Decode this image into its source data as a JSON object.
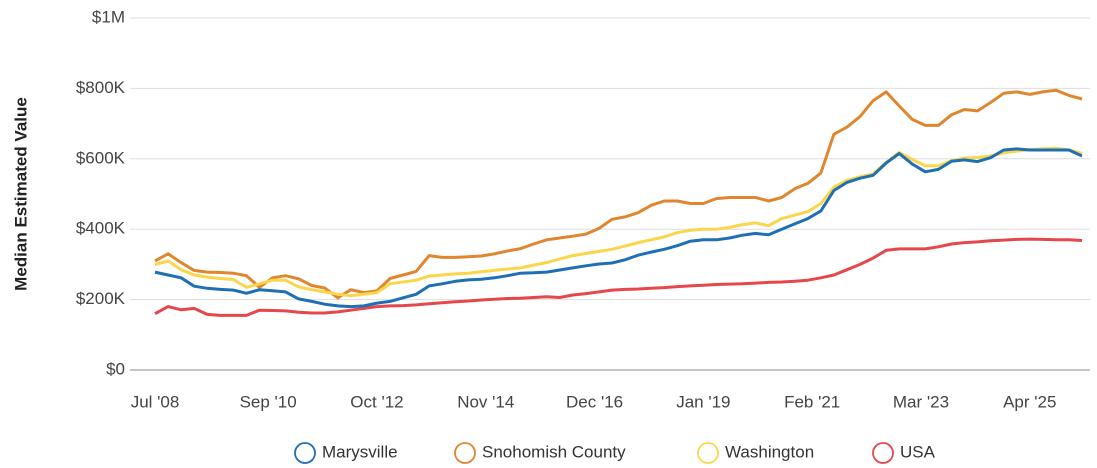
{
  "chart_data": {
    "type": "line",
    "y_label": "Median Estimated Value",
    "x": [
      "Jul '08",
      "Oct '08",
      "Jan '09",
      "Apr '09",
      "Jul '09",
      "Oct '09",
      "Jan '10",
      "Apr '10",
      "Jul '10",
      "Oct '10",
      "Jan '11",
      "Apr '11",
      "Jul '11",
      "Oct '11",
      "Jan '12",
      "Apr '12",
      "Jul '12",
      "Oct '12",
      "Jan '13",
      "Apr '13",
      "Jul '13",
      "Oct '13",
      "Jan '14",
      "Apr '14",
      "Jul '14",
      "Oct '14",
      "Jan '15",
      "Apr '15",
      "Jul '15",
      "Oct '15",
      "Jan '16",
      "Apr '16",
      "Jul '16",
      "Oct '16",
      "Jan '17",
      "Apr '17",
      "Jul '17",
      "Oct '17",
      "Jan '18",
      "Apr '18",
      "Jul '18",
      "Oct '18",
      "Jan '19",
      "Apr '19",
      "Jul '19",
      "Oct '19",
      "Jan '20",
      "Apr '20",
      "Jul '20",
      "Oct '20",
      "Jan '21",
      "Apr '21",
      "Jul '21",
      "Oct '21",
      "Jan '22",
      "Apr '22",
      "Jul '22",
      "Oct '22",
      "Jan '23",
      "Apr '23",
      "Jul '23",
      "Oct '23",
      "Jan '24",
      "Apr '24",
      "Jul '24",
      "Oct '24",
      "Jan '25",
      "Apr '25",
      "Jul '25",
      "Oct '25",
      "Jan '26",
      "Apr '26"
    ],
    "xlim": [
      "Jul '08",
      "Apr '26"
    ],
    "xticks": [
      "Jul '08",
      "Sep '10",
      "Oct '12",
      "Nov '14",
      "Dec '16",
      "Jan '19",
      "Feb '21",
      "Mar '23",
      "Apr '25"
    ],
    "ylim": [
      0,
      1000000
    ],
    "yticks": [
      {
        "value": 0,
        "label": "$0"
      },
      {
        "value": 200000,
        "label": "$200K"
      },
      {
        "value": 400000,
        "label": "$400K"
      },
      {
        "value": 600000,
        "label": "$600K"
      },
      {
        "value": 800000,
        "label": "$800K"
      },
      {
        "value": 1000000,
        "label": "$1M"
      }
    ],
    "grid": true,
    "legend": "bottom",
    "series": [
      {
        "name": "Marysville",
        "color": "#1f6fb4",
        "values": [
          278000,
          270000,
          262000,
          238000,
          232000,
          229000,
          227000,
          218000,
          228000,
          225000,
          222000,
          202000,
          195000,
          187000,
          182000,
          180000,
          182000,
          190000,
          195000,
          205000,
          215000,
          239000,
          245000,
          252000,
          256000,
          258000,
          262000,
          268000,
          275000,
          276000,
          278000,
          284000,
          290000,
          296000,
          301000,
          304000,
          313000,
          326000,
          335000,
          343000,
          353000,
          366000,
          370000,
          370000,
          375000,
          383000,
          388000,
          384000,
          400000,
          415000,
          430000,
          452000,
          510000,
          533000,
          545000,
          553000,
          588000,
          615000,
          585000,
          563000,
          570000,
          593000,
          597000,
          592000,
          603000,
          625000,
          628000,
          625000,
          625000,
          625000,
          625000,
          608000
        ]
      },
      {
        "name": "Snohomish County",
        "color": "#e0862e",
        "values": [
          310000,
          330000,
          305000,
          283000,
          278000,
          277000,
          275000,
          268000,
          235000,
          262000,
          268000,
          259000,
          240000,
          233000,
          205000,
          228000,
          220000,
          225000,
          260000,
          270000,
          280000,
          325000,
          320000,
          320000,
          322000,
          324000,
          330000,
          338000,
          345000,
          358000,
          370000,
          375000,
          380000,
          386000,
          402000,
          428000,
          435000,
          447000,
          468000,
          480000,
          480000,
          473000,
          473000,
          487000,
          490000,
          490000,
          490000,
          480000,
          490000,
          515000,
          530000,
          560000,
          670000,
          690000,
          720000,
          765000,
          790000,
          750000,
          712000,
          695000,
          695000,
          725000,
          740000,
          736000,
          760000,
          786000,
          790000,
          783000,
          790000,
          795000,
          780000,
          770000
        ]
      },
      {
        "name": "Washington",
        "color": "#f9d64c",
        "values": [
          300000,
          310000,
          285000,
          270000,
          264000,
          260000,
          257000,
          235000,
          245000,
          255000,
          255000,
          236000,
          228000,
          222000,
          215000,
          211000,
          215000,
          220000,
          245000,
          250000,
          255000,
          267000,
          270000,
          273000,
          275000,
          279000,
          283000,
          287000,
          290000,
          298000,
          305000,
          315000,
          325000,
          331000,
          337000,
          343000,
          352000,
          362000,
          370000,
          378000,
          390000,
          397000,
          400000,
          400000,
          405000,
          413000,
          418000,
          410000,
          430000,
          440000,
          450000,
          473000,
          520000,
          539000,
          549000,
          557000,
          590000,
          618000,
          598000,
          580000,
          580000,
          595000,
          602000,
          604000,
          608000,
          617000,
          622000,
          626000,
          628000,
          630000,
          625000,
          615000
        ]
      },
      {
        "name": "USA",
        "color": "#e5474b",
        "values": [
          160000,
          180000,
          171000,
          175000,
          158000,
          155000,
          155000,
          155000,
          170000,
          169000,
          168000,
          164000,
          162000,
          162000,
          165000,
          170000,
          175000,
          180000,
          182000,
          183000,
          185000,
          188000,
          191000,
          194000,
          196000,
          199000,
          201000,
          203000,
          204000,
          206000,
          208000,
          206000,
          213000,
          217000,
          222000,
          227000,
          229000,
          230000,
          232000,
          234000,
          237000,
          239000,
          241000,
          243000,
          244000,
          245000,
          247000,
          249000,
          250000,
          252000,
          255000,
          262000,
          270000,
          285000,
          300000,
          318000,
          340000,
          344000,
          344000,
          344000,
          350000,
          358000,
          362000,
          364000,
          367000,
          369000,
          371000,
          372000,
          371000,
          370000,
          370000,
          368000
        ]
      }
    ]
  }
}
